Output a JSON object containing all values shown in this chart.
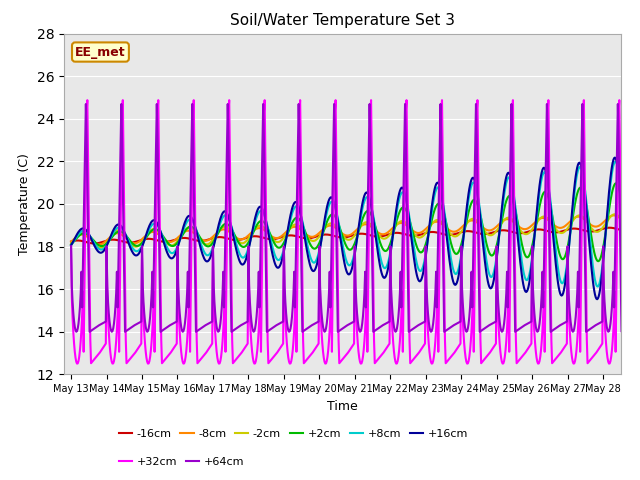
{
  "title": "Soil/Water Temperature Set 3",
  "xlabel": "Time",
  "ylabel": "Temperature (C)",
  "ylim": [
    12,
    28
  ],
  "yticks": [
    12,
    14,
    16,
    18,
    20,
    22,
    24,
    26,
    28
  ],
  "bg_color": "#e8e8e8",
  "fig_bg": "#ffffff",
  "label_text": "EE_met",
  "label_bg": "#ffffcc",
  "label_border": "#cc8800",
  "label_text_color": "#880000",
  "series": [
    {
      "name": "-16cm",
      "color": "#cc0000",
      "lw": 1.5,
      "zorder": 4
    },
    {
      "name": "-8cm",
      "color": "#ff8800",
      "lw": 1.5,
      "zorder": 4
    },
    {
      "name": "-2cm",
      "color": "#cccc00",
      "lw": 1.5,
      "zorder": 4
    },
    {
      "name": "+2cm",
      "color": "#00bb00",
      "lw": 1.5,
      "zorder": 4
    },
    {
      "name": "+8cm",
      "color": "#00cccc",
      "lw": 1.5,
      "zorder": 4
    },
    {
      "name": "+16cm",
      "color": "#000099",
      "lw": 1.5,
      "zorder": 4
    },
    {
      "name": "+32cm",
      "color": "#ff00ff",
      "lw": 1.5,
      "zorder": 5
    },
    {
      "name": "+64cm",
      "color": "#9900cc",
      "lw": 1.5,
      "zorder": 5
    }
  ],
  "xtick_labels": [
    "May 13",
    "May 14",
    "May 15",
    "May 16",
    "May 17",
    "May 18",
    "May 19",
    "May 20",
    "May 21",
    "May 22",
    "May 23",
    "May 24",
    "May 25",
    "May 26",
    "May 27",
    "May 28"
  ],
  "xtick_positions": [
    0,
    1,
    2,
    3,
    4,
    5,
    6,
    7,
    8,
    9,
    10,
    11,
    12,
    13,
    14,
    15
  ]
}
